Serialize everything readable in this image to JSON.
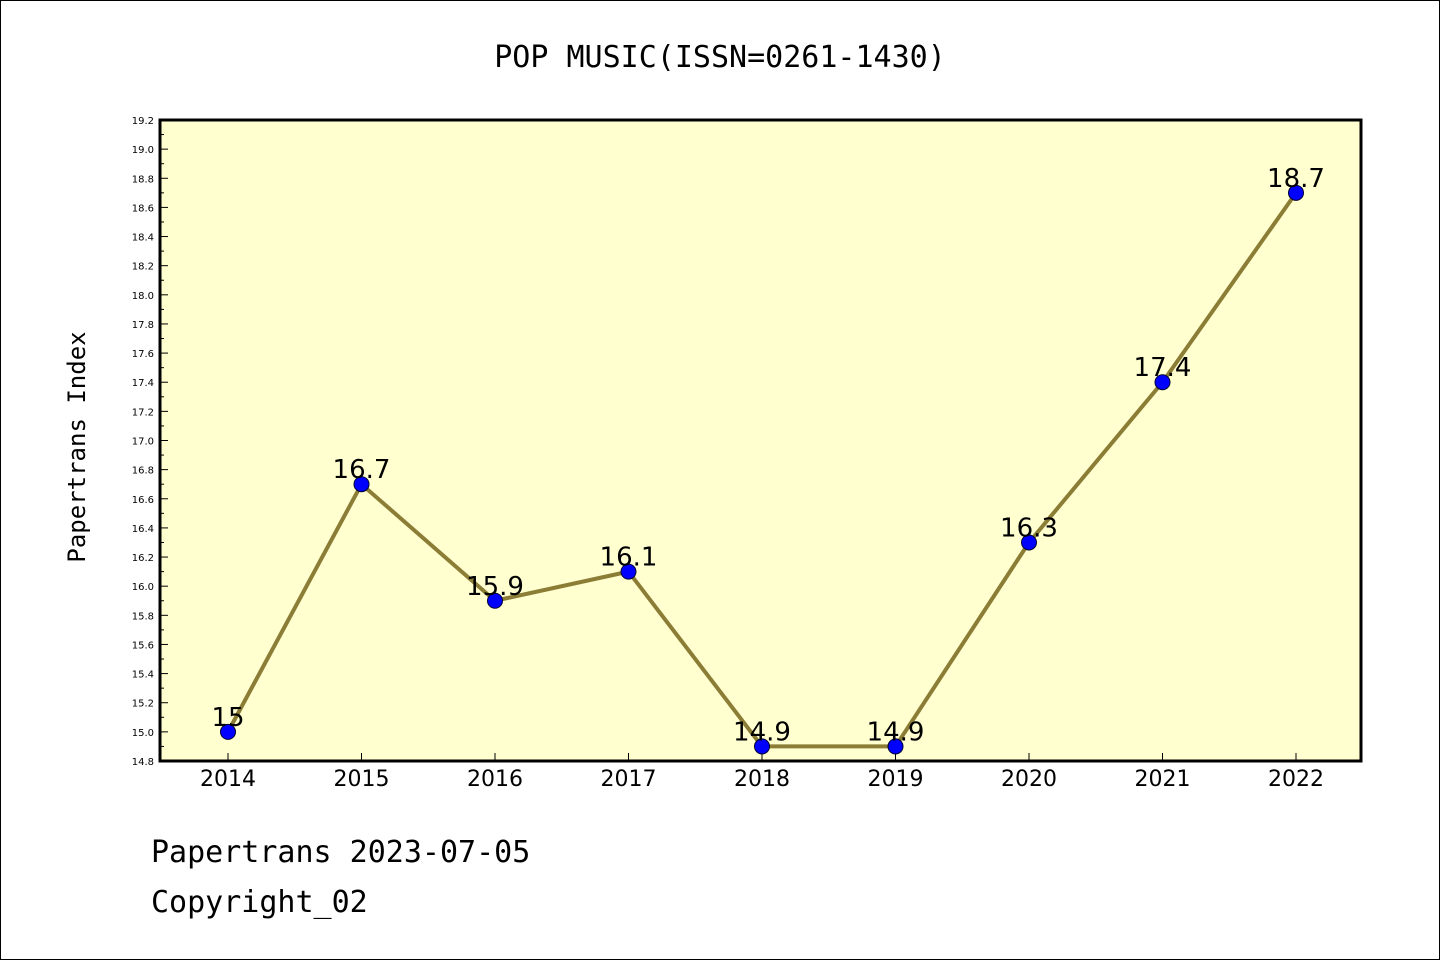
{
  "chart_data": {
    "type": "line",
    "title": "POP MUSIC(ISSN=0261-1430)",
    "xlabel": "",
    "ylabel": "Papertrans Index",
    "categories": [
      "2014",
      "2015",
      "2016",
      "2017",
      "2018",
      "2019",
      "2020",
      "2021",
      "2022"
    ],
    "values": [
      15.0,
      16.7,
      15.9,
      16.1,
      14.9,
      14.9,
      16.3,
      17.4,
      18.7
    ],
    "data_labels": [
      "15",
      "16.7",
      "15.9",
      "16.1",
      "14.9",
      "14.9",
      "16.3",
      "17.4",
      "18.7"
    ],
    "ylim": [
      14.8,
      19.2
    ],
    "yticks": [
      "14.8",
      "15.0",
      "15.2",
      "15.4",
      "15.6",
      "15.8",
      "16.0",
      "16.2",
      "16.4",
      "16.6",
      "16.8",
      "17.0",
      "17.2",
      "17.4",
      "17.6",
      "17.8",
      "18.0",
      "18.2",
      "18.4",
      "18.6",
      "18.8",
      "19.0",
      "19.2"
    ],
    "grid": false,
    "colors": {
      "plot_background": "#ffffd0",
      "line": "#8b7d35",
      "marker": "#0000ff"
    }
  },
  "footer": {
    "line1": "Papertrans 2023-07-05",
    "line2": "Copyright_02"
  }
}
